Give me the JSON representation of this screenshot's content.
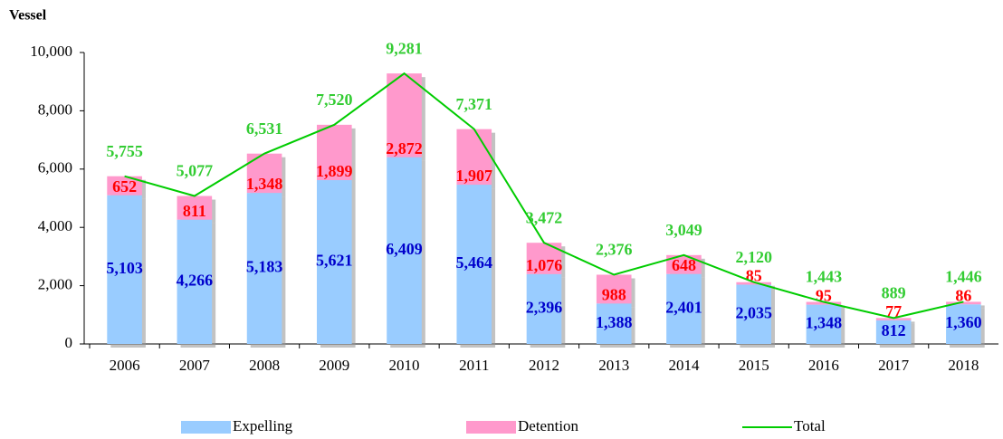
{
  "chart_data": {
    "type": "bar",
    "stacked": true,
    "y_axis_label": "Vessel",
    "categories": [
      "2006",
      "2007",
      "2008",
      "2009",
      "2010",
      "2011",
      "2012",
      "2013",
      "2014",
      "2015",
      "2016",
      "2017",
      "2018"
    ],
    "series": [
      {
        "name": "Expelling",
        "type": "bar",
        "color": "#99ccff",
        "label_color": "#0000cc",
        "values": [
          5103,
          4266,
          5183,
          5621,
          6409,
          5464,
          2396,
          1388,
          2401,
          2035,
          1348,
          812,
          1360
        ],
        "value_labels": [
          "5,103",
          "4,266",
          "5,183",
          "5,621",
          "6,409",
          "5,464",
          "2,396",
          "1,388",
          "2,401",
          "2,035",
          "1,348",
          "812",
          "1,360"
        ]
      },
      {
        "name": "Detention",
        "type": "bar",
        "color": "#ff99cc",
        "label_color": "#ff0000",
        "values": [
          652,
          811,
          1348,
          1899,
          2872,
          1907,
          1076,
          988,
          648,
          85,
          95,
          77,
          86
        ],
        "value_labels": [
          "652",
          "811",
          "1,348",
          "1,899",
          "2,872",
          "1,907",
          "1,076",
          "988",
          "648",
          "85",
          "95",
          "77",
          "86"
        ]
      },
      {
        "name": "Total",
        "type": "line",
        "color": "#00cc00",
        "label_color": "#33cc33",
        "values": [
          5755,
          5077,
          6531,
          7520,
          9281,
          7371,
          3472,
          2376,
          3049,
          2120,
          1443,
          889,
          1446
        ],
        "value_labels": [
          "5,755",
          "5,077",
          "6,531",
          "7,520",
          "9,281",
          "7,371",
          "3,472",
          "2,376",
          "3,049",
          "2,120",
          "1,443",
          "889",
          "1,446"
        ]
      }
    ],
    "ylim": [
      0,
      10000
    ],
    "yticks": [
      0,
      {
        "value": 2000,
        "label": "2,000"
      },
      {
        "value": 4000,
        "label": "4,000"
      },
      {
        "value": 6000,
        "label": "6,000"
      },
      {
        "value": 8000,
        "label": "8,000"
      },
      {
        "value": 10000,
        "label": "10,000"
      }
    ]
  }
}
